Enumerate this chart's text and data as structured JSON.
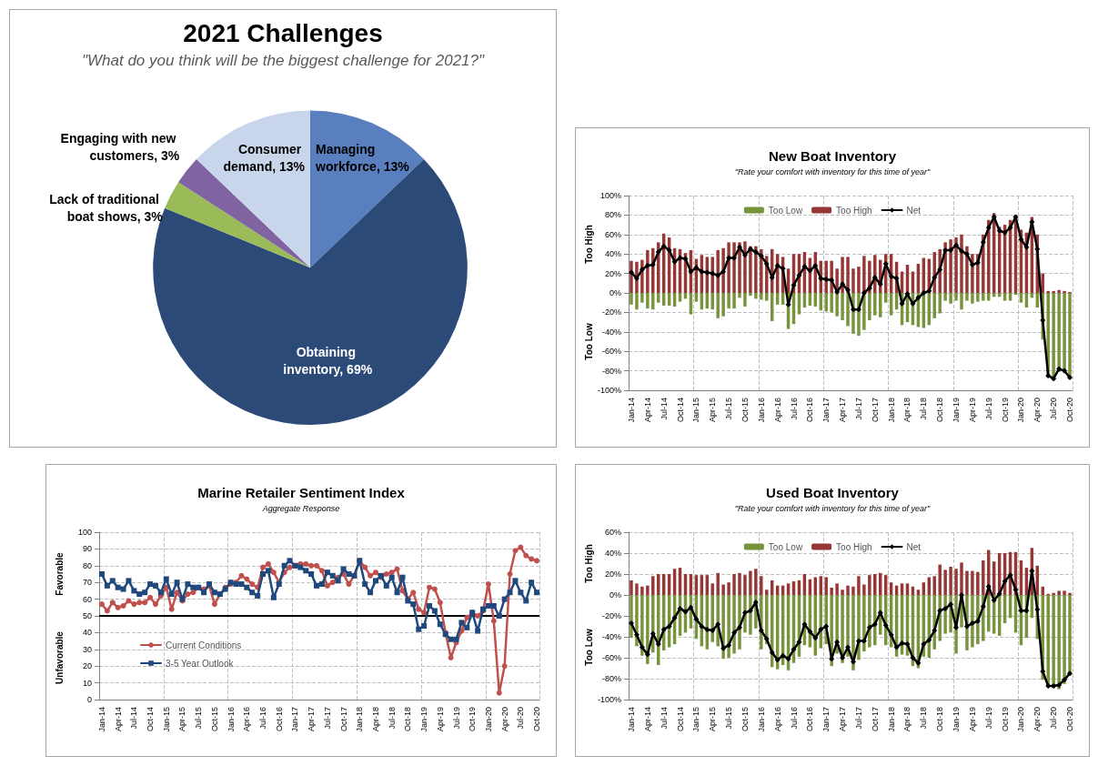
{
  "chart_data": [
    {
      "type": "pie",
      "title": "2021 Challenges",
      "subtitle": "\"What do you think will be the biggest challenge for 2021?\"",
      "categories": [
        "Managing workforce",
        "Obtaining inventory",
        "Lack of traditional boat shows",
        "Engaging with new customers",
        "Consumer demand"
      ],
      "value_labels": [
        "13%",
        "69%",
        "3%",
        "3%",
        "13%"
      ],
      "values": [
        13,
        69,
        3,
        3,
        13
      ],
      "colors": [
        "#5a7fbf",
        "#2c4a78",
        "#9bbb59",
        "#8064a2",
        "#c9d5ea"
      ]
    },
    {
      "type": "bar",
      "title": "New Boat Inventory",
      "subtitle": "\"Rate your comfort with inventory for this time of year\"",
      "ylabel": "Too High",
      "annotations": [
        "Too Low"
      ],
      "categories": [
        "Jan-14",
        null,
        null,
        "Apr-14",
        null,
        null,
        "Jul-14",
        null,
        null,
        "Oct-14",
        null,
        null,
        "Jan-15",
        null,
        null,
        "Apr-15",
        null,
        null,
        "Jul-15",
        null,
        null,
        "Oct-15",
        null,
        null,
        "Jan-16",
        null,
        null,
        "Apr-16",
        null,
        null,
        "Jul-16",
        null,
        null,
        "Oct-16",
        null,
        null,
        "Jan-17",
        null,
        null,
        "Apr-17",
        null,
        null,
        "Jul-17",
        null,
        null,
        "Oct-17",
        null,
        null,
        "Jan-18",
        null,
        null,
        "Apr-18",
        null,
        null,
        "Jul-18",
        null,
        null,
        "Oct-18",
        null,
        null,
        "Jan-19",
        null,
        null,
        "Apr-19",
        null,
        null,
        "Jul-19",
        null,
        null,
        "Oct-19",
        null,
        null,
        "Jan-20",
        null,
        null,
        "Apr-20",
        null,
        null,
        "Jul-20",
        null,
        null,
        "Oct-20"
      ],
      "stacked": true,
      "series": [
        {
          "name": "Too Low",
          "color": "#77933c",
          "values": [
            -12,
            -17,
            -10,
            -16,
            -17,
            -10,
            -13,
            -13,
            -14,
            -9,
            -6,
            -22,
            -9,
            -17,
            -16,
            -17,
            -26,
            -24,
            -16,
            -16,
            -5,
            -14,
            -3,
            -6,
            -7,
            -8,
            -29,
            -12,
            -12,
            -37,
            -32,
            -22,
            -15,
            -13,
            -14,
            -18,
            -19,
            -20,
            -24,
            -28,
            -34,
            -42,
            -44,
            -38,
            -28,
            -23,
            -25,
            -10,
            -23,
            -17,
            -33,
            -30,
            -33,
            -35,
            -36,
            -33,
            -26,
            -21,
            -8,
            -11,
            -8,
            -17,
            -8,
            -11,
            -9,
            -8,
            -8,
            -4,
            -4,
            -8,
            -8,
            -2,
            -10,
            -15,
            -5,
            -15,
            -48,
            -87,
            -90,
            -81,
            -82,
            -88
          ]
        },
        {
          "name": "Too High",
          "color": "#953735",
          "values": [
            33,
            32,
            34,
            44,
            46,
            52,
            61,
            57,
            46,
            45,
            41,
            44,
            35,
            39,
            37,
            37,
            44,
            46,
            52,
            52,
            52,
            53,
            48,
            48,
            45,
            38,
            45,
            40,
            37,
            25,
            40,
            40,
            42,
            36,
            42,
            33,
            33,
            33,
            25,
            37,
            37,
            25,
            27,
            38,
            33,
            39,
            34,
            40,
            40,
            32,
            22,
            29,
            22,
            30,
            36,
            35,
            42,
            45,
            52,
            55,
            57,
            60,
            48,
            40,
            40,
            60,
            75,
            82,
            68,
            70,
            75,
            80,
            65,
            62,
            78,
            60,
            20,
            2,
            2,
            3,
            2,
            1
          ]
        },
        {
          "name": "Net",
          "type": "line",
          "color": "#000000",
          "marker": "diamond",
          "values": [
            21,
            15,
            24,
            28,
            29,
            42,
            48,
            44,
            32,
            36,
            35,
            22,
            26,
            22,
            21,
            20,
            18,
            22,
            36,
            36,
            47,
            39,
            45,
            42,
            38,
            30,
            16,
            28,
            25,
            -12,
            8,
            18,
            27,
            23,
            28,
            15,
            14,
            13,
            1,
            9,
            3,
            -17,
            -17,
            0,
            5,
            16,
            9,
            30,
            17,
            15,
            -11,
            -1,
            -11,
            -5,
            0,
            2,
            16,
            24,
            44,
            44,
            49,
            43,
            40,
            29,
            31,
            52,
            67,
            78,
            64,
            62,
            67,
            78,
            55,
            47,
            73,
            45,
            -28,
            -85,
            -88,
            -78,
            -80,
            -87
          ]
        }
      ],
      "ylim": [
        -100,
        100
      ],
      "yticks": [
        {
          "value": -100,
          "label": "-100%"
        },
        {
          "value": -80,
          "label": "-80%"
        },
        {
          "value": -60,
          "label": "-60%"
        },
        {
          "value": -40,
          "label": "-40%"
        },
        {
          "value": -20,
          "label": "-20%"
        },
        {
          "value": 0,
          "label": "0%"
        },
        {
          "value": 20,
          "label": "20%"
        },
        {
          "value": 40,
          "label": "40%"
        },
        {
          "value": 60,
          "label": "60%"
        },
        {
          "value": 80,
          "label": "80%"
        },
        {
          "value": 100,
          "label": "100%"
        }
      ],
      "grid": true,
      "legend": "top"
    },
    {
      "type": "line",
      "title": "Marine Retailer Sentiment Index",
      "subtitle": "Aggregate Response",
      "ylabel": "Favorable",
      "annotations": [
        "Unfavorable"
      ],
      "categories": [
        "Jan-14",
        null,
        null,
        "Apr-14",
        null,
        null,
        "Jul-14",
        null,
        null,
        "Oct-14",
        null,
        null,
        "Jan-15",
        null,
        null,
        "Apr-15",
        null,
        null,
        "Jul-15",
        null,
        null,
        "Oct-15",
        null,
        null,
        "Jan-16",
        null,
        null,
        "Apr-16",
        null,
        null,
        "Jul-16",
        null,
        null,
        "Oct-16",
        null,
        null,
        "Jan-17",
        null,
        null,
        "Apr-17",
        null,
        null,
        "Jul-17",
        null,
        null,
        "Oct-17",
        null,
        null,
        "Jan-18",
        null,
        null,
        "Apr-18",
        null,
        null,
        "Jul-18",
        null,
        null,
        "Oct-18",
        null,
        null,
        "Jan-19",
        null,
        null,
        "Apr-19",
        null,
        null,
        "Jul-19",
        null,
        null,
        "Oct-19",
        null,
        null,
        "Jan-20",
        null,
        null,
        "Apr-20",
        null,
        null,
        "Jul-20",
        null,
        null,
        "Oct-20"
      ],
      "series": [
        {
          "name": "Current Conditions",
          "color": "#c0504d",
          "marker": "circle",
          "values": [
            57,
            53,
            58,
            55,
            56,
            59,
            57,
            58,
            58,
            61,
            57,
            62,
            67,
            54,
            64,
            59,
            63,
            64,
            67,
            66,
            68,
            57,
            63,
            67,
            69,
            70,
            74,
            72,
            69,
            67,
            79,
            81,
            76,
            70,
            76,
            79,
            80,
            81,
            81,
            80,
            80,
            77,
            68,
            70,
            73,
            75,
            69,
            74,
            83,
            79,
            74,
            76,
            73,
            75,
            76,
            78,
            65,
            60,
            64,
            54,
            52,
            67,
            66,
            58,
            40,
            25,
            34,
            41,
            49,
            52,
            50,
            53,
            69,
            47,
            4,
            20,
            75,
            89,
            91,
            86,
            84,
            83
          ]
        },
        {
          "name": "3-5 Year Outlook",
          "color": "#1f497d",
          "marker": "square",
          "values": [
            75,
            68,
            71,
            67,
            66,
            71,
            65,
            63,
            64,
            69,
            68,
            64,
            72,
            63,
            70,
            60,
            69,
            67,
            67,
            64,
            69,
            64,
            63,
            66,
            70,
            69,
            69,
            67,
            64,
            62,
            75,
            77,
            61,
            69,
            80,
            83,
            80,
            79,
            77,
            75,
            68,
            69,
            76,
            74,
            71,
            78,
            75,
            74,
            83,
            69,
            64,
            71,
            74,
            68,
            73,
            64,
            73,
            59,
            57,
            42,
            44,
            56,
            53,
            45,
            39,
            36,
            36,
            46,
            43,
            52,
            41,
            54,
            56,
            56,
            50,
            60,
            64,
            71,
            64,
            59,
            70,
            64
          ]
        }
      ],
      "ylim": [
        0,
        100
      ],
      "yticks": [
        0,
        10,
        20,
        30,
        40,
        50,
        60,
        70,
        80,
        90,
        100
      ],
      "ref_lines": [
        {
          "axis": "y",
          "value": 50,
          "color": "#000000"
        }
      ],
      "grid": true,
      "legend": "bottom left"
    },
    {
      "type": "bar",
      "title": "Used Boat Inventory",
      "subtitle": "\"Rate your comfort with inventory for this time of year\"",
      "ylabel": "Too High",
      "annotations": [
        "Too Low"
      ],
      "categories": [
        "Jan-14",
        null,
        null,
        "Apr-14",
        null,
        null,
        "Jul-14",
        null,
        null,
        "Oct-14",
        null,
        null,
        "Jan-15",
        null,
        null,
        "Apr-15",
        null,
        null,
        "Jul-15",
        null,
        null,
        "Oct-15",
        null,
        null,
        "Jan-16",
        null,
        null,
        "Apr-16",
        null,
        null,
        "Jul-16",
        null,
        null,
        "Oct-16",
        null,
        null,
        "Jan-17",
        null,
        null,
        "Apr-17",
        null,
        null,
        "Jul-17",
        null,
        null,
        "Oct-17",
        null,
        null,
        "Jan-18",
        null,
        null,
        "Apr-18",
        null,
        null,
        "Jul-18",
        null,
        null,
        "Oct-18",
        null,
        null,
        "Jan-19",
        null,
        null,
        "Apr-19",
        null,
        null,
        "Jul-19",
        null,
        null,
        "Oct-19",
        null,
        null,
        "Jan-20",
        null,
        null,
        "Apr-20",
        null,
        null,
        "Jul-20",
        null,
        null,
        "Oct-20"
      ],
      "stacked": true,
      "series": [
        {
          "name": "Too Low",
          "color": "#77933c",
          "values": [
            -41,
            -49,
            -58,
            -66,
            -55,
            -67,
            -53,
            -50,
            -47,
            -39,
            -36,
            -32,
            -42,
            -49,
            -52,
            -45,
            -49,
            -61,
            -60,
            -56,
            -52,
            -36,
            -38,
            -32,
            -52,
            -47,
            -69,
            -71,
            -67,
            -72,
            -65,
            -59,
            -48,
            -50,
            -58,
            -51,
            -47,
            -68,
            -56,
            -65,
            -59,
            -72,
            -62,
            -54,
            -50,
            -48,
            -38,
            -48,
            -50,
            -59,
            -57,
            -58,
            -68,
            -70,
            -59,
            -60,
            -52,
            -44,
            -37,
            -36,
            -56,
            -31,
            -53,
            -50,
            -47,
            -44,
            -35,
            -37,
            -39,
            -27,
            -22,
            -36,
            -48,
            -41,
            -22,
            -42,
            -81,
            -88,
            -89,
            -90,
            -85,
            -77
          ]
        },
        {
          "name": "Too High",
          "color": "#953735",
          "values": [
            14,
            11,
            8,
            9,
            18,
            20,
            20,
            20,
            25,
            26,
            20,
            20,
            19,
            19,
            19,
            11,
            21,
            10,
            12,
            20,
            21,
            19,
            23,
            25,
            18,
            5,
            14,
            9,
            9,
            11,
            13,
            14,
            20,
            15,
            17,
            18,
            17,
            7,
            11,
            5,
            9,
            8,
            18,
            10,
            19,
            20,
            21,
            19,
            12,
            9,
            11,
            11,
            8,
            5,
            12,
            17,
            18,
            29,
            24,
            27,
            25,
            31,
            23,
            23,
            22,
            33,
            43,
            32,
            40,
            40,
            41,
            41,
            33,
            26,
            45,
            28,
            8,
            1,
            2,
            4,
            4,
            2
          ]
        },
        {
          "name": "Net",
          "type": "line",
          "color": "#000000",
          "marker": "diamond",
          "values": [
            -27,
            -38,
            -50,
            -57,
            -37,
            -47,
            -33,
            -30,
            -22,
            -13,
            -16,
            -12,
            -23,
            -30,
            -33,
            -34,
            -28,
            -51,
            -48,
            -36,
            -31,
            -17,
            -15,
            -7,
            -34,
            -42,
            -55,
            -62,
            -58,
            -61,
            -52,
            -45,
            -28,
            -35,
            -41,
            -33,
            -30,
            -61,
            -45,
            -60,
            -50,
            -64,
            -44,
            -44,
            -31,
            -28,
            -17,
            -29,
            -38,
            -50,
            -46,
            -47,
            -60,
            -65,
            -47,
            -43,
            -34,
            -15,
            -13,
            -9,
            -31,
            0,
            -30,
            -27,
            -25,
            -11,
            8,
            -5,
            1,
            13,
            19,
            5,
            -15,
            -15,
            23,
            -14,
            -73,
            -87,
            -87,
            -86,
            -81,
            -75
          ]
        }
      ],
      "ylim": [
        -100,
        60
      ],
      "yticks": [
        {
          "value": -100,
          "label": "-100%"
        },
        {
          "value": -80,
          "label": "-80%"
        },
        {
          "value": -60,
          "label": "-60%"
        },
        {
          "value": -40,
          "label": "-40%"
        },
        {
          "value": -20,
          "label": "-20%"
        },
        {
          "value": 0,
          "label": "0%"
        },
        {
          "value": 20,
          "label": "20%"
        },
        {
          "value": 40,
          "label": "40%"
        },
        {
          "value": 60,
          "label": "60%"
        }
      ],
      "grid": true,
      "legend": "top"
    }
  ]
}
